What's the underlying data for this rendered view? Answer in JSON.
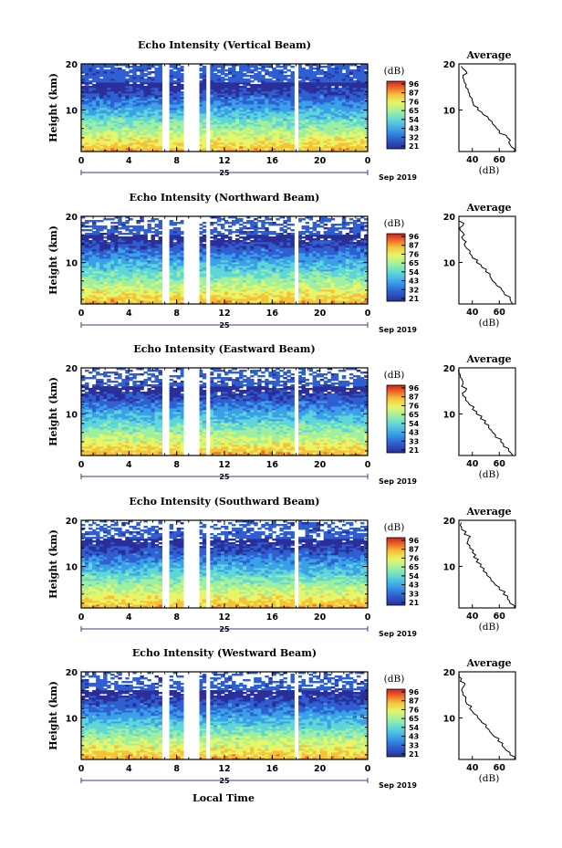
{
  "common": {
    "ylabel": "Height (km)",
    "colorbar_unit": "(dB)",
    "avg_title": "Average",
    "avg_xlabel": "(dB)",
    "date_day": "25",
    "date_month": "Sep 2019",
    "xlabel": "Local Time",
    "x_ticks": [
      "0",
      "4",
      "8",
      "12",
      "16",
      "20",
      "0"
    ],
    "y_ticks": [
      "20",
      "10"
    ],
    "colormap": [
      "#2b2f99",
      "#2f5fd0",
      "#3aa0e8",
      "#5fd6d8",
      "#9ef0a0",
      "#e7f566",
      "#f5c23a",
      "#ee6a26",
      "#cc2222"
    ]
  },
  "chart_data": [
    {
      "type": "heatmap",
      "title": "Echo Intensity (Vertical Beam)",
      "xlim": [
        0,
        24
      ],
      "ylim": [
        1,
        20
      ],
      "data_gaps_hours": [
        [
          6.9,
          7.3
        ],
        [
          8.6,
          9.9
        ],
        [
          10.5,
          10.8
        ],
        [
          17.9,
          18.2
        ]
      ],
      "colorbar_ticks": [
        "96",
        "87",
        "76",
        "65",
        "54",
        "43",
        "32",
        "21"
      ],
      "avg_profile": {
        "xticks": [
          "40",
          "60"
        ],
        "xlim": [
          30,
          72
        ],
        "height_km": [
          1,
          2,
          3,
          4,
          5,
          6,
          7,
          8,
          9,
          10,
          11,
          12,
          13,
          14,
          15,
          16,
          17,
          18,
          19
        ],
        "db": [
          71,
          69,
          67,
          66,
          60,
          58,
          55,
          52,
          48,
          44,
          41,
          40,
          38,
          37,
          35,
          34,
          33,
          36,
          33
        ]
      }
    },
    {
      "type": "heatmap",
      "title": "Echo Intensity (Northward Beam)",
      "xlim": [
        0,
        24
      ],
      "ylim": [
        1,
        20
      ],
      "data_gaps_hours": [
        [
          6.9,
          7.3
        ],
        [
          8.6,
          9.9
        ],
        [
          10.5,
          10.8
        ],
        [
          17.9,
          18.2
        ]
      ],
      "colorbar_ticks": [
        "96",
        "87",
        "76",
        "65",
        "54",
        "43",
        "32",
        "21"
      ],
      "avg_profile": {
        "xticks": [
          "40",
          "60"
        ],
        "xlim": [
          30,
          72
        ],
        "height_km": [
          1,
          2,
          3,
          4,
          5,
          6,
          7,
          8,
          9,
          10,
          11,
          12,
          13,
          14,
          15,
          16,
          17,
          18,
          19
        ],
        "db": [
          70,
          68,
          64,
          62,
          58,
          55,
          53,
          50,
          47,
          43,
          40,
          38,
          36,
          34,
          33,
          34,
          31,
          33,
          30
        ]
      }
    },
    {
      "type": "heatmap",
      "title": "Echo Intensity (Eastward Beam)",
      "xlim": [
        0,
        24
      ],
      "ylim": [
        1,
        20
      ],
      "data_gaps_hours": [
        [
          6.9,
          7.3
        ],
        [
          8.6,
          9.9
        ],
        [
          10.5,
          10.8
        ],
        [
          17.9,
          18.2
        ]
      ],
      "colorbar_ticks": [
        "96",
        "87",
        "76",
        "65",
        "54",
        "43",
        "33",
        "21"
      ],
      "avg_profile": {
        "xticks": [
          "40",
          "60"
        ],
        "xlim": [
          30,
          72
        ],
        "height_km": [
          1,
          2,
          3,
          4,
          5,
          6,
          7,
          8,
          9,
          10,
          11,
          12,
          13,
          14,
          15,
          16,
          17,
          18,
          19
        ],
        "db": [
          70,
          67,
          63,
          61,
          57,
          55,
          52,
          49,
          46,
          43,
          40,
          38,
          35,
          33,
          35,
          32,
          33,
          31,
          30
        ]
      }
    },
    {
      "type": "heatmap",
      "title": "Echo Intensity (Southward Beam)",
      "xlim": [
        0,
        24
      ],
      "ylim": [
        1,
        20
      ],
      "data_gaps_hours": [
        [
          6.9,
          7.3
        ],
        [
          8.6,
          9.9
        ],
        [
          10.5,
          10.8
        ],
        [
          17.9,
          18.2
        ]
      ],
      "colorbar_ticks": [
        "96",
        "87",
        "76",
        "65",
        "54",
        "43",
        "33",
        "21"
      ],
      "avg_profile": {
        "xticks": [
          "40",
          "60"
        ],
        "xlim": [
          30,
          72
        ],
        "height_km": [
          1,
          2,
          3,
          4,
          5,
          6,
          7,
          8,
          9,
          10,
          11,
          12,
          13,
          14,
          15,
          16,
          17,
          18,
          19
        ],
        "db": [
          71,
          68,
          66,
          63,
          60,
          57,
          54,
          51,
          48,
          46,
          43,
          41,
          40,
          38,
          36,
          37,
          34,
          32,
          31
        ]
      }
    },
    {
      "type": "heatmap",
      "title": "Echo Intensity (Westward Beam)",
      "xlim": [
        0,
        24
      ],
      "ylim": [
        1,
        20
      ],
      "data_gaps_hours": [
        [
          6.9,
          7.3
        ],
        [
          8.6,
          9.9
        ],
        [
          10.5,
          10.8
        ],
        [
          17.9,
          18.2
        ]
      ],
      "colorbar_ticks": [
        "96",
        "87",
        "76",
        "65",
        "54",
        "43",
        "33",
        "21"
      ],
      "avg_profile": {
        "xticks": [
          "40",
          "60"
        ],
        "xlim": [
          30,
          72
        ],
        "height_km": [
          1,
          2,
          3,
          4,
          5,
          6,
          7,
          8,
          9,
          10,
          11,
          12,
          13,
          14,
          15,
          16,
          17,
          18,
          19
        ],
        "db": [
          71,
          68,
          65,
          62,
          59,
          56,
          53,
          50,
          47,
          44,
          41,
          38,
          36,
          35,
          33,
          32,
          34,
          31,
          30
        ]
      }
    }
  ]
}
